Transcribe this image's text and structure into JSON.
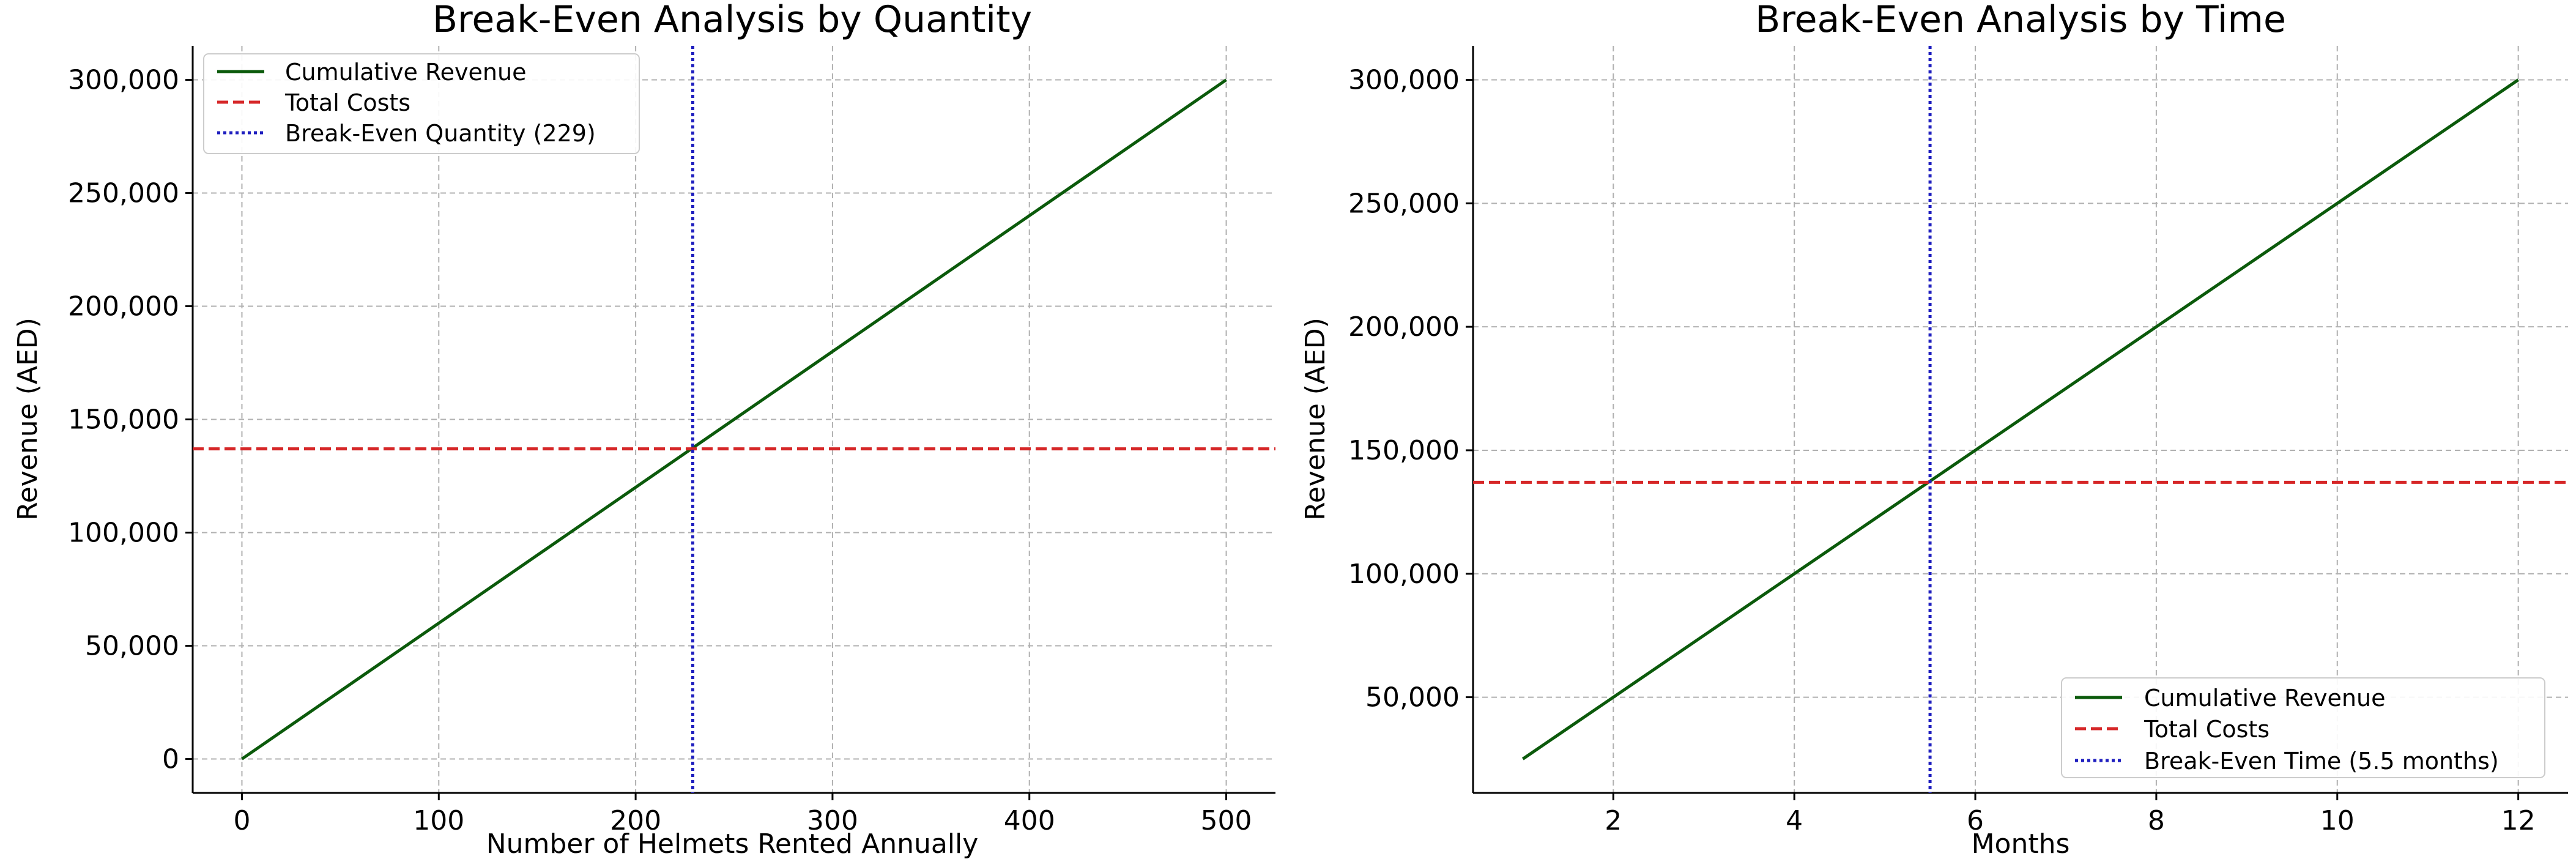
{
  "chart_data": [
    {
      "type": "line",
      "title": "Break-Even Analysis by Quantity",
      "xlabel": "Number of Helmets Rented Annually",
      "ylabel": "Revenue (AED)",
      "xlim": [
        -25,
        525
      ],
      "ylim": [
        -15000,
        315000
      ],
      "xticks": [
        0,
        100,
        200,
        300,
        400,
        500
      ],
      "xtick_labels": [
        "0",
        "100",
        "200",
        "300",
        "400",
        "500"
      ],
      "yticks": [
        0,
        50000,
        100000,
        150000,
        200000,
        250000,
        300000
      ],
      "ytick_labels": [
        "0",
        "50,000",
        "100,000",
        "150,000",
        "200,000",
        "250,000",
        "300,000"
      ],
      "grid": true,
      "legend_position": "top-left",
      "series": [
        {
          "name": "Cumulative Revenue",
          "kind": "line",
          "style": "solid",
          "color": "#0b5a0b",
          "x": [
            0,
            500
          ],
          "y": [
            0,
            300000
          ]
        },
        {
          "name": "Total Costs",
          "kind": "hline",
          "style": "dashed",
          "color": "#d62728",
          "value": 137000
        },
        {
          "name": "Break-Even Quantity (229)",
          "kind": "vline",
          "style": "dotted",
          "color": "#1f1fbf",
          "value": 229
        }
      ]
    },
    {
      "type": "line",
      "title": "Break-Even Analysis by Time",
      "xlabel": "Months",
      "ylabel": "Revenue (AED)",
      "xlim": [
        0.45,
        12.55
      ],
      "ylim": [
        11250,
        313750
      ],
      "xticks": [
        2,
        4,
        6,
        8,
        10,
        12
      ],
      "xtick_labels": [
        "2",
        "4",
        "6",
        "8",
        "10",
        "12"
      ],
      "yticks": [
        50000,
        100000,
        150000,
        200000,
        250000,
        300000
      ],
      "ytick_labels": [
        "50,000",
        "100,000",
        "150,000",
        "200,000",
        "250,000",
        "300,000"
      ],
      "grid": true,
      "legend_position": "bottom-right",
      "series": [
        {
          "name": "Cumulative Revenue",
          "kind": "line",
          "style": "solid",
          "color": "#0b5a0b",
          "x": [
            1,
            12
          ],
          "y": [
            25000,
            300000
          ]
        },
        {
          "name": "Total Costs",
          "kind": "hline",
          "style": "dashed",
          "color": "#d62728",
          "value": 137000
        },
        {
          "name": "Break-Even Time (5.5 months)",
          "kind": "vline",
          "style": "dotted",
          "color": "#1f1fbf",
          "value": 5.5
        }
      ]
    }
  ]
}
